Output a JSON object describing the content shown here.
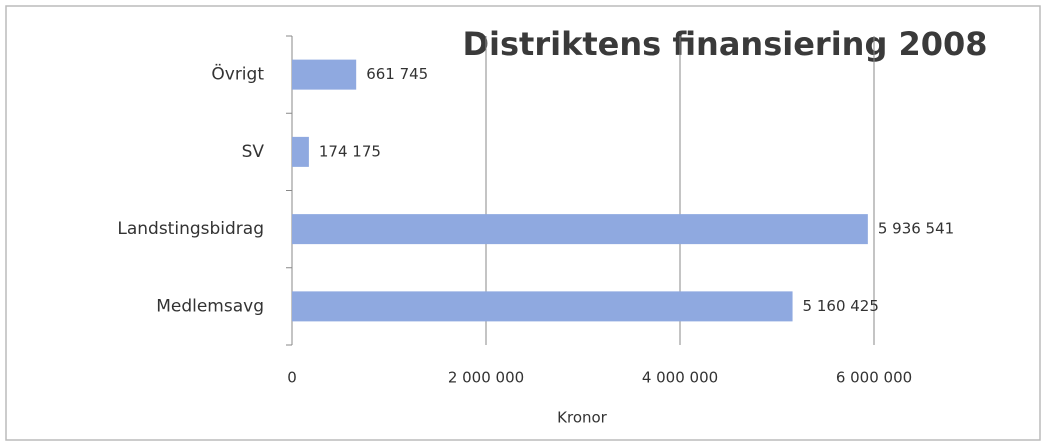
{
  "chart_data": {
    "type": "bar",
    "orientation": "horizontal",
    "title": "Distriktens finansiering 2008",
    "x_label": "Kronor",
    "categories": [
      "Övrigt",
      "SV",
      "Landstingsbidrag",
      "Medlemsavg"
    ],
    "values": [
      661745,
      174175,
      5936541,
      5160425
    ],
    "value_labels": [
      "661 745",
      "174 175",
      "5 936 541",
      "5 160 425"
    ],
    "color": "#8fa9e0",
    "xlim": [
      0,
      7000000
    ],
    "xticks": [
      0,
      {
        "value": 2000000,
        "label": "2 000 000"
      },
      {
        "value": 4000000,
        "label": "4 000 000"
      },
      {
        "value": 6000000,
        "label": "6 000 000"
      }
    ],
    "grid": true
  }
}
